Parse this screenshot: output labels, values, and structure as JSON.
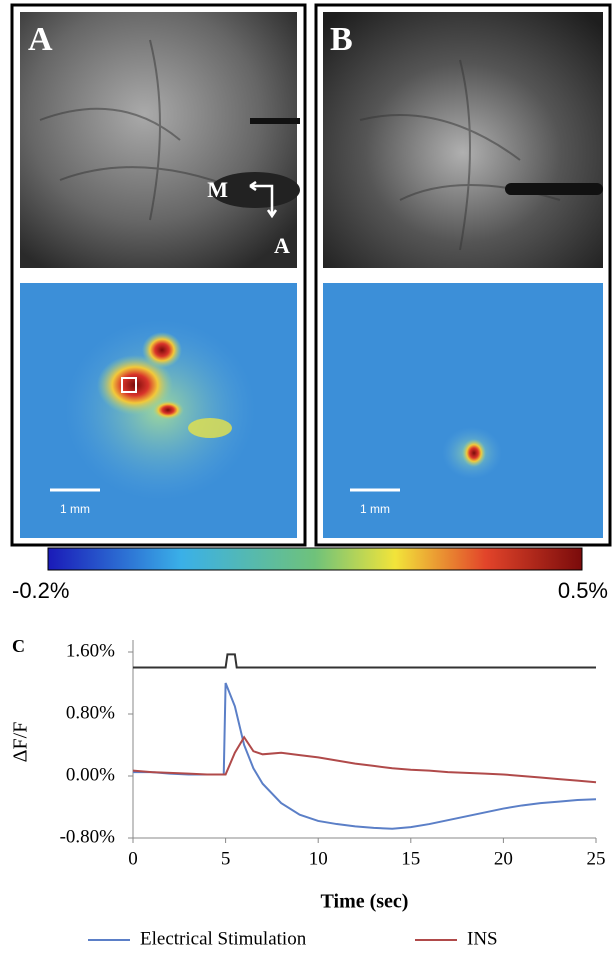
{
  "panels": [
    {
      "label": "A",
      "arrow_labels": [
        "M",
        "A"
      ],
      "scale_label": "1 mm"
    },
    {
      "label": "B",
      "scale_label": "1 mm"
    }
  ],
  "colorbar": {
    "min_label": "-0.2%",
    "max_label": "0.5%"
  },
  "chart_data": {
    "type": "line",
    "panel_label": "C",
    "ylabel": "ΔF/F",
    "xlabel": "Time (sec)",
    "x": [
      0,
      1,
      2,
      3,
      4,
      4.9,
      5,
      5.5,
      6,
      6.5,
      7,
      8,
      9,
      10,
      11,
      12,
      13,
      14,
      15,
      16,
      17,
      18,
      19,
      20,
      21,
      22,
      23,
      24,
      25
    ],
    "series": [
      {
        "name": "Electrical Stimulation",
        "color": "#5b7fc7",
        "values": [
          0.05,
          0.05,
          0.03,
          0.02,
          0.02,
          0.02,
          1.2,
          0.9,
          0.4,
          0.1,
          -0.1,
          -0.35,
          -0.5,
          -0.58,
          -0.62,
          -0.65,
          -0.67,
          -0.68,
          -0.66,
          -0.62,
          -0.57,
          -0.52,
          -0.47,
          -0.42,
          -0.38,
          -0.35,
          -0.33,
          -0.31,
          -0.3
        ]
      },
      {
        "name": "INS",
        "color": "#b04a4a",
        "values": [
          0.07,
          0.05,
          0.04,
          0.03,
          0.02,
          0.02,
          0.02,
          0.3,
          0.5,
          0.32,
          0.28,
          0.3,
          0.27,
          0.24,
          0.2,
          0.16,
          0.13,
          0.1,
          0.08,
          0.07,
          0.05,
          0.04,
          0.03,
          0.02,
          0.0,
          -0.02,
          -0.04,
          -0.06,
          -0.08
        ]
      }
    ],
    "stimulus": {
      "color": "#333333",
      "x": [
        0,
        5,
        5.1,
        5.5,
        5.6,
        25
      ],
      "values": [
        1.4,
        1.4,
        1.57,
        1.57,
        1.4,
        1.4
      ]
    },
    "xlim": [
      0,
      25
    ],
    "xticks": [
      0,
      5,
      10,
      15,
      20,
      25
    ],
    "ylim": [
      -0.8,
      1.6
    ],
    "yticks": [
      {
        "value": -0.8,
        "label": "-0.80%"
      },
      {
        "value": 0,
        "label": "0.00%"
      },
      {
        "value": 0.8,
        "label": "0.80%"
      },
      {
        "value": 1.6,
        "label": "1.60%"
      }
    ],
    "legend": "bottom"
  }
}
